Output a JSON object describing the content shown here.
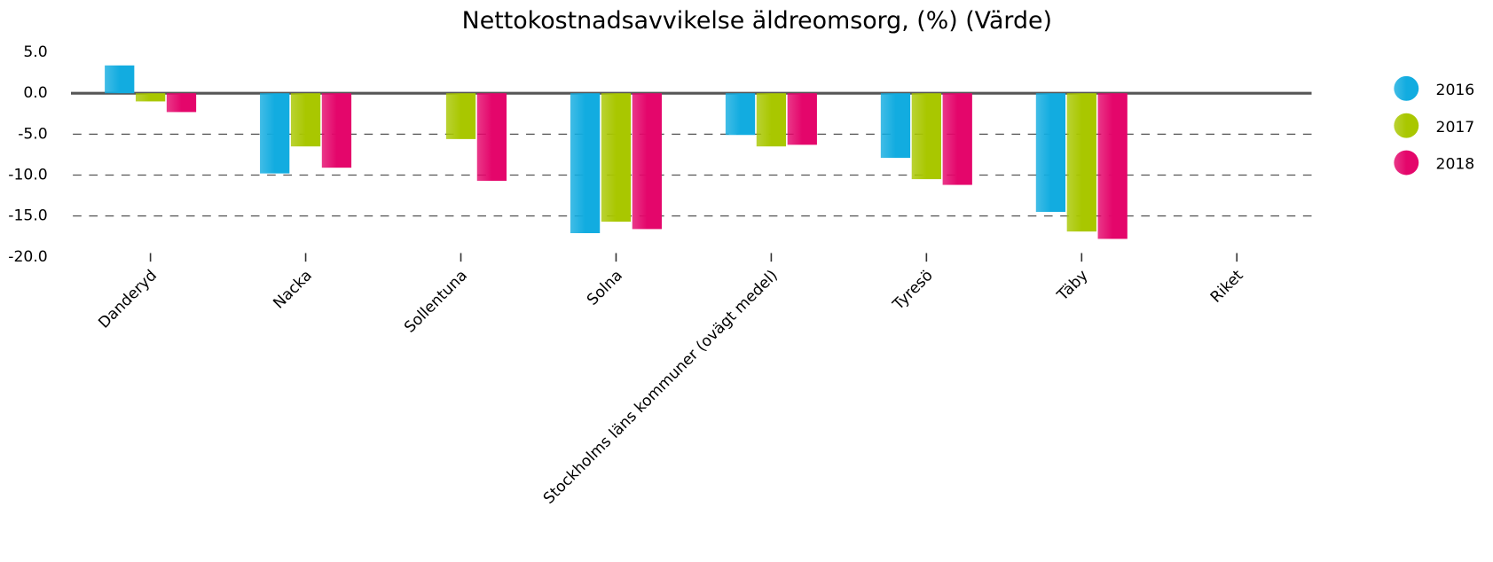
{
  "chart_data": {
    "type": "bar",
    "title": "Nettokostnadsavvikelse äldreomsorg, (%) (Värde)",
    "categories": [
      "Danderyd",
      "Nacka",
      "Sollentuna",
      "Solna",
      "Stockholms läns kommuner (ovägt medel)",
      "Tyresö",
      "Täby",
      "Riket"
    ],
    "series": [
      {
        "name": "2016",
        "color": "#12ace0",
        "values": [
          3.4,
          -9.8,
          null,
          -17.1,
          -5.1,
          -7.9,
          -14.5,
          null
        ]
      },
      {
        "name": "2017",
        "color": "#a9c700",
        "values": [
          -1.0,
          -6.5,
          -5.6,
          -15.7,
          -6.5,
          -10.5,
          -16.9,
          null
        ]
      },
      {
        "name": "2018",
        "color": "#e4066b",
        "values": [
          -2.3,
          -9.1,
          -10.7,
          -16.6,
          -6.3,
          -11.2,
          -17.8,
          null
        ]
      }
    ],
    "ylim": [
      -20,
      5
    ],
    "yticks": [
      {
        "value": 5,
        "label": "5.0"
      },
      {
        "value": 0,
        "label": "0.0"
      },
      {
        "value": -5,
        "label": "-5.0"
      },
      {
        "value": -10,
        "label": "-10.0"
      },
      {
        "value": -15,
        "label": "-15.0"
      },
      {
        "value": -20,
        "label": "-20.0"
      }
    ],
    "grid": true,
    "legend": "right"
  }
}
